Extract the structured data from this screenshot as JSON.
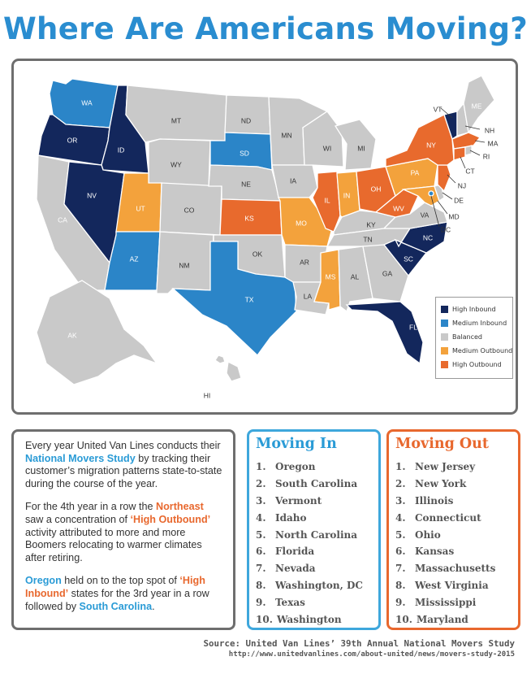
{
  "title": "Where Are Americans Moving?",
  "colors": {
    "high_inbound": "#13275c",
    "medium_inbound": "#2b85c8",
    "balanced": "#c9c9c9",
    "medium_outbound": "#f3a23c",
    "high_outbound": "#e86a2d"
  },
  "legend": [
    {
      "label": "High Inbound",
      "color": "#13275c"
    },
    {
      "label": "Medium Inbound",
      "color": "#2b85c8"
    },
    {
      "label": "Balanced",
      "color": "#c9c9c9"
    },
    {
      "label": "Medium Outbound",
      "color": "#f3a23c"
    },
    {
      "label": "High Outbound",
      "color": "#e86a2d"
    }
  ],
  "states": {
    "WA": "medium_inbound",
    "OR": "high_inbound",
    "CA": "balanced",
    "ID": "high_inbound",
    "NV": "high_inbound",
    "MT": "balanced",
    "WY": "balanced",
    "UT": "medium_outbound",
    "AZ": "medium_inbound",
    "CO": "balanced",
    "NM": "balanced",
    "ND": "balanced",
    "SD": "medium_inbound",
    "NE": "balanced",
    "KS": "high_outbound",
    "OK": "balanced",
    "TX": "medium_inbound",
    "MN": "balanced",
    "IA": "balanced",
    "MO": "medium_outbound",
    "AR": "balanced",
    "LA": "balanced",
    "WI": "balanced",
    "IL": "high_outbound",
    "MI": "balanced",
    "IN": "medium_outbound",
    "OH": "high_outbound",
    "KY": "balanced",
    "TN": "balanced",
    "MS": "medium_outbound",
    "AL": "balanced",
    "GA": "balanced",
    "FL": "high_inbound",
    "SC": "high_inbound",
    "NC": "high_inbound",
    "VA": "balanced",
    "WV": "high_outbound",
    "PA": "medium_outbound",
    "NY": "high_outbound",
    "VT": "high_inbound",
    "NH": "balanced",
    "ME": "balanced",
    "MA": "high_outbound",
    "RI": "balanced",
    "CT": "high_outbound",
    "NJ": "high_outbound",
    "DE": "balanced",
    "MD": "medium_outbound",
    "DC": "medium_inbound",
    "AK": "balanced",
    "HI": "balanced"
  },
  "info": {
    "p1_a": "Every year United Van Lines conducts their ",
    "p1_b": "National Movers Study",
    "p1_c": " by tracking their customer’s migration patterns state-to-state during the course of the year.",
    "p2_a": "For the 4th year in a row the ",
    "p2_b": "Northeast",
    "p2_c": " saw a concentration of ",
    "p2_d": "‘High Outbound’",
    "p2_e": " activity attributed to more and more Boomers relocating to warmer climates after retiring.",
    "p3_a": "Oregon",
    "p3_b": " held on to the top spot of ",
    "p3_c": "‘High Inbound’",
    "p3_d": " states for the 3rd year in a row followed by ",
    "p3_e": "South Carolina",
    "p3_f": "."
  },
  "moving_in": {
    "title": "Moving In",
    "items": [
      {
        "num": "1.",
        "name": "Oregon"
      },
      {
        "num": "2.",
        "name": "South Carolina"
      },
      {
        "num": "3.",
        "name": "Vermont"
      },
      {
        "num": "4.",
        "name": "Idaho"
      },
      {
        "num": "5.",
        "name": "North Carolina"
      },
      {
        "num": "6.",
        "name": "Florida"
      },
      {
        "num": "7.",
        "name": "Nevada"
      },
      {
        "num": "8.",
        "name": "Washington, DC"
      },
      {
        "num": "9.",
        "name": "Texas"
      },
      {
        "num": "10.",
        "name": "Washington"
      }
    ]
  },
  "moving_out": {
    "title": "Moving Out",
    "items": [
      {
        "num": "1.",
        "name": "New Jersey"
      },
      {
        "num": "2.",
        "name": "New York"
      },
      {
        "num": "3.",
        "name": "Illinois"
      },
      {
        "num": "4.",
        "name": "Connecticut"
      },
      {
        "num": "5.",
        "name": "Ohio"
      },
      {
        "num": "6.",
        "name": "Kansas"
      },
      {
        "num": "7.",
        "name": "Massachusetts"
      },
      {
        "num": "8.",
        "name": "West Virginia"
      },
      {
        "num": "9.",
        "name": "Mississippi"
      },
      {
        "num": "10.",
        "name": "Maryland"
      }
    ]
  },
  "source": "Source: United Van Lines’ 39th Annual National Movers Study",
  "source_url": "http://www.unitedvanlines.com/about-united/news/movers-study-2015"
}
